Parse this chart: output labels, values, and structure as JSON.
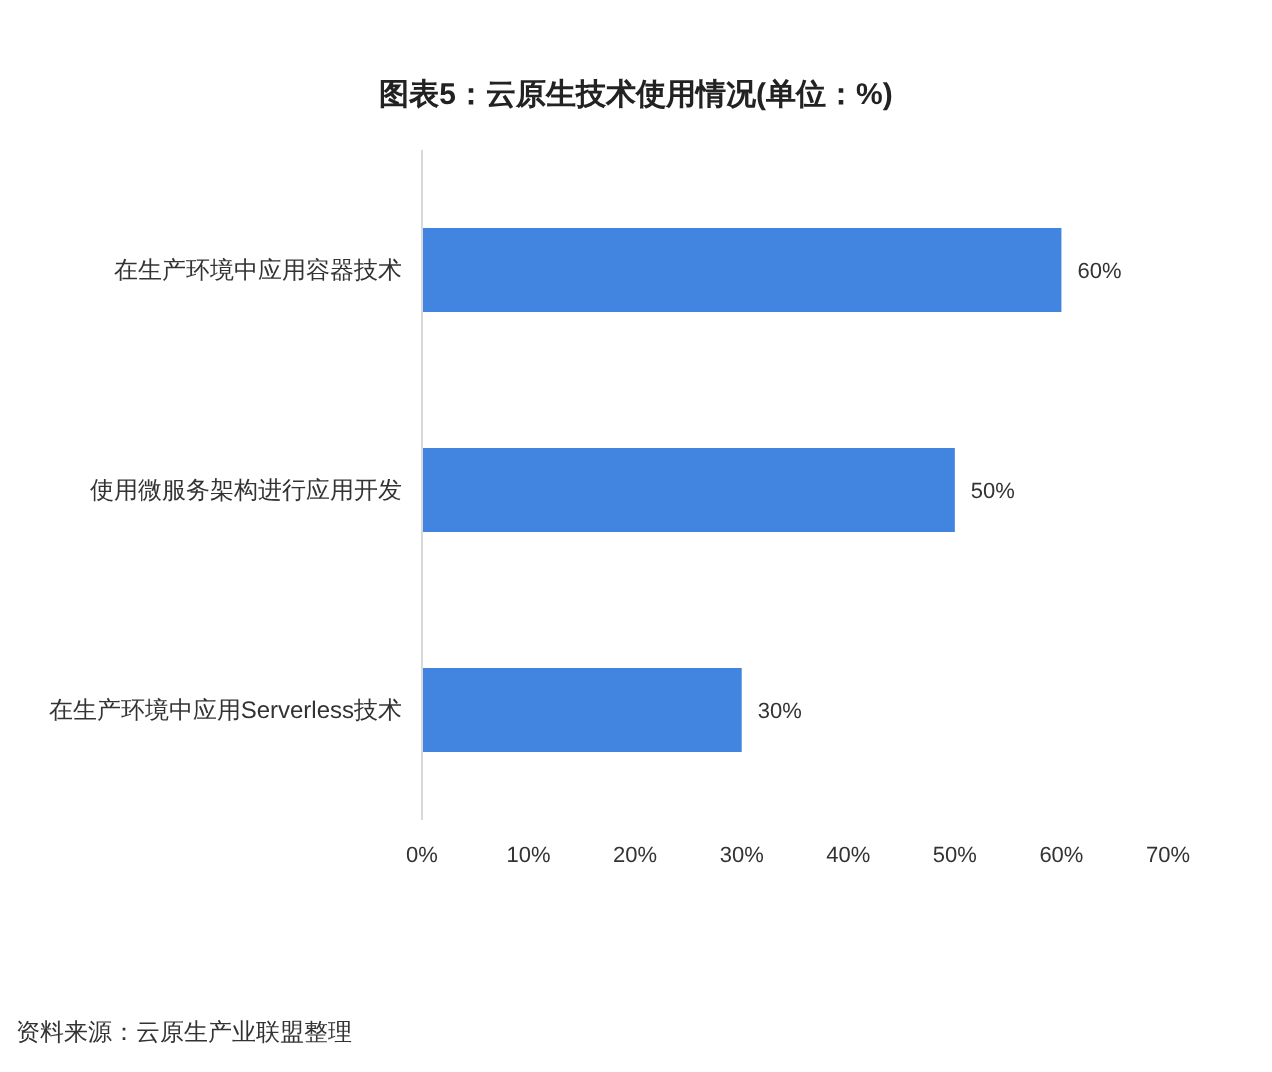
{
  "chart_data": {
    "type": "bar",
    "orientation": "horizontal",
    "title": "图表5：云原生技术使用情况(单位：%)",
    "categories": [
      "在生产环境中应用容器技术",
      "使用微服务架构进行应用开发",
      "在生产环境中应用Serverless技术"
    ],
    "values": [
      60,
      50,
      30
    ],
    "color": "#4285e0",
    "value_labels": [
      "60%",
      "50%",
      "30%"
    ],
    "xlim": [
      0,
      70
    ],
    "xticks": [
      {
        "value": 0,
        "label": "0%"
      },
      {
        "value": 10,
        "label": "10%"
      },
      {
        "value": 20,
        "label": "20%"
      },
      {
        "value": 30,
        "label": "30%"
      },
      {
        "value": 40,
        "label": "40%"
      },
      {
        "value": 50,
        "label": "50%"
      },
      {
        "value": 60,
        "label": "60%"
      },
      {
        "value": 70,
        "label": "70%"
      }
    ],
    "annotations": [
      "资料来源：云原生产业联盟整理"
    ]
  }
}
